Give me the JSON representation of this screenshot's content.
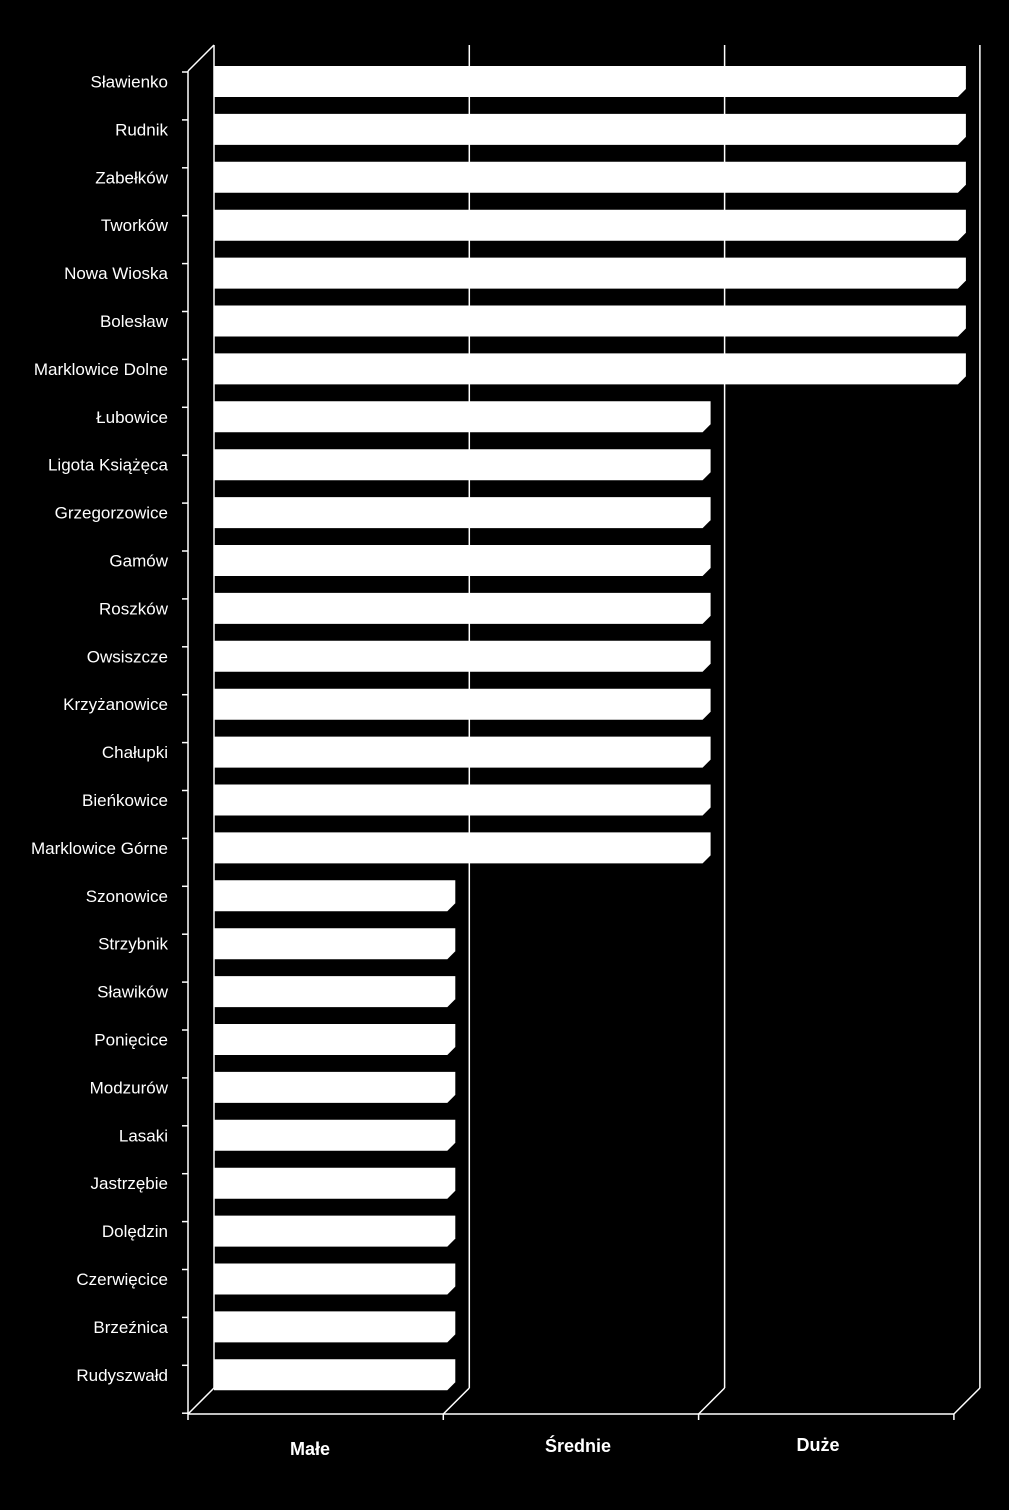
{
  "chart_data": {
    "type": "bar",
    "orientation": "horizontal",
    "categories": [
      "Sławienko",
      "Rudnik",
      "Zabełków",
      "Tworków",
      "Nowa Wioska",
      "Bolesław",
      "Marklowice Dolne",
      "Łubowice",
      "Ligota Książęca",
      "Grzegorzowice",
      "Gamów",
      "Roszków",
      "Owsiszcze",
      "Krzyżanowice",
      "Chałupki",
      "Bieńkowice",
      "Marklowice Górne",
      "Szonowice",
      "Strzybnik",
      "Sławików",
      "Ponięcice",
      "Modzurów",
      "Lasaki",
      "Jastrzębie",
      "Dolędzin",
      "Czerwięcice",
      "Brzeźnica",
      "Rudyszwałd"
    ],
    "values": [
      3,
      3,
      3,
      3,
      3,
      3,
      3,
      2,
      2,
      2,
      2,
      2,
      2,
      2,
      2,
      2,
      2,
      1,
      1,
      1,
      1,
      1,
      1,
      1,
      1,
      1,
      1,
      1
    ],
    "x_tick_labels": [
      "Małe",
      "Średnie",
      "Duże"
    ],
    "xlim": [
      0,
      3
    ],
    "grid": true,
    "style": "3d",
    "colors": {
      "background": "#000000",
      "bar": "#ffffff",
      "axis": "#ffffff"
    }
  }
}
